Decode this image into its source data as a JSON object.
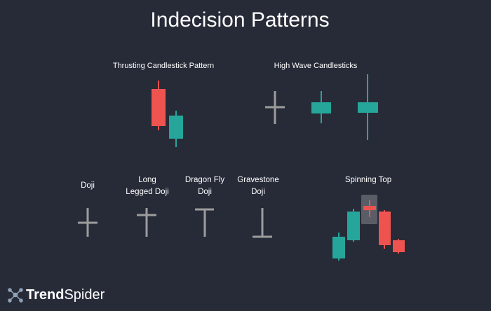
{
  "title": "Indecision Patterns",
  "patterns": [
    {
      "label_lines": [
        "Thrusting Candlestick Pattern"
      ]
    },
    {
      "label_lines": [
        "High Wave Candlesticks"
      ]
    },
    {
      "label_lines": [
        "Doji"
      ]
    },
    {
      "label_lines": [
        "Long",
        "Legged Doji"
      ]
    },
    {
      "label_lines": [
        "Dragon Fly",
        "Doji"
      ]
    },
    {
      "label_lines": [
        "Gravestone",
        "Doji"
      ]
    },
    {
      "label_lines": [
        "Spinning Top"
      ]
    }
  ],
  "brand": {
    "bold": "Trend",
    "light": "Spider"
  }
}
